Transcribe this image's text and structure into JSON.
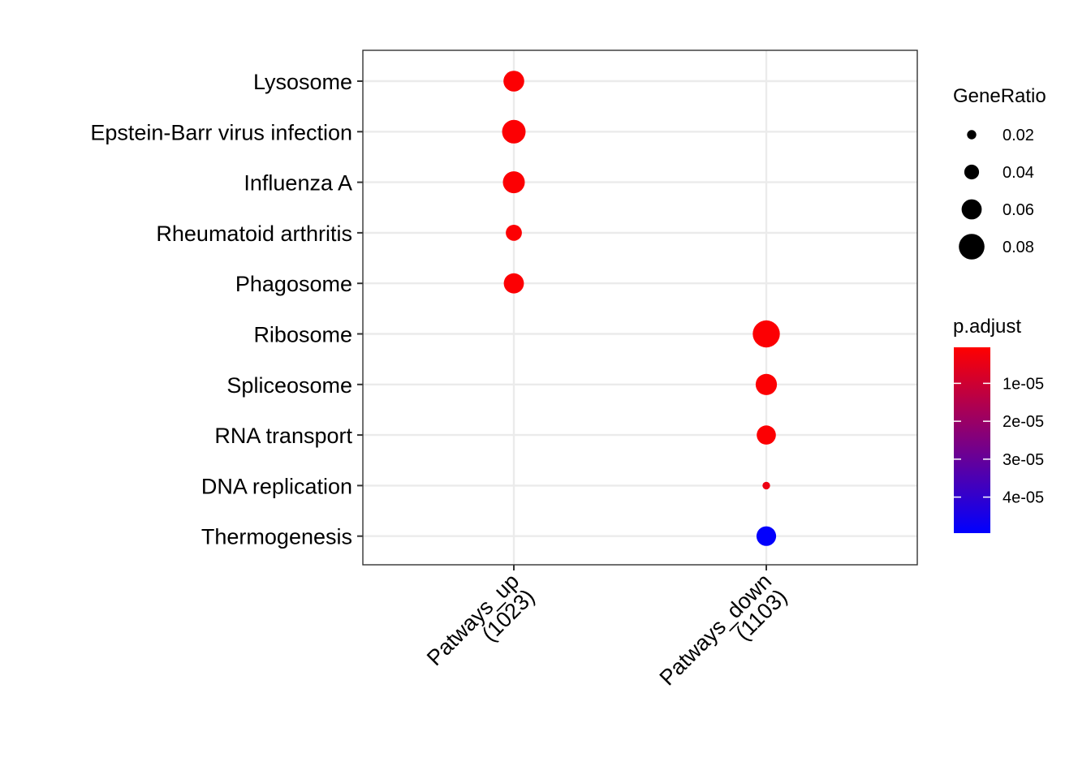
{
  "chart_data": {
    "type": "scatter",
    "x_categories": [
      {
        "line1": "Patways_up",
        "line2": "(1023)"
      },
      {
        "line1": "Patways_down",
        "line2": "(1103)"
      }
    ],
    "y_categories": [
      "Lysosome",
      "Epstein-Barr virus infection",
      "Influenza A",
      "Rheumatoid arthritis",
      "Phagosome",
      "Ribosome",
      "Spliceosome",
      "RNA transport",
      "DNA replication",
      "Thermogenesis"
    ],
    "points": [
      {
        "x": "Patways_up",
        "y": "Lysosome",
        "gene_ratio": 0.062,
        "p_adjust": 1e-06
      },
      {
        "x": "Patways_up",
        "y": "Epstein-Barr virus infection",
        "gene_ratio": 0.072,
        "p_adjust": 1e-06
      },
      {
        "x": "Patways_up",
        "y": "Influenza A",
        "gene_ratio": 0.066,
        "p_adjust": 1e-06
      },
      {
        "x": "Patways_up",
        "y": "Rheumatoid arthritis",
        "gene_ratio": 0.045,
        "p_adjust": 1e-06
      },
      {
        "x": "Patways_up",
        "y": "Phagosome",
        "gene_ratio": 0.06,
        "p_adjust": 1e-06
      },
      {
        "x": "Patways_down",
        "y": "Ribosome",
        "gene_ratio": 0.085,
        "p_adjust": 1e-06
      },
      {
        "x": "Patways_down",
        "y": "Spliceosome",
        "gene_ratio": 0.064,
        "p_adjust": 1e-06
      },
      {
        "x": "Patways_down",
        "y": "RNA transport",
        "gene_ratio": 0.056,
        "p_adjust": 1e-06
      },
      {
        "x": "Patways_down",
        "y": "DNA replication",
        "gene_ratio": 0.014,
        "p_adjust": 4e-06
      },
      {
        "x": "Patways_down",
        "y": "Thermogenesis",
        "gene_ratio": 0.058,
        "p_adjust": 4.9e-05
      }
    ],
    "size_legend": {
      "title": "GeneRatio",
      "breaks": [
        0.02,
        0.04,
        0.06,
        0.08
      ],
      "labels": [
        "0.02",
        "0.04",
        "0.06",
        "0.08"
      ]
    },
    "color_legend": {
      "title": "p.adjust",
      "breaks": [
        1e-05,
        2e-05,
        3e-05,
        4e-05
      ],
      "labels": [
        "1e-05",
        "2e-05",
        "3e-05",
        "4e-05"
      ],
      "range": [
        5e-07,
        4.95e-05
      ],
      "low_color": "#ff0000",
      "high_color": "#0000ff"
    },
    "grid": true,
    "legend_position": "right"
  }
}
